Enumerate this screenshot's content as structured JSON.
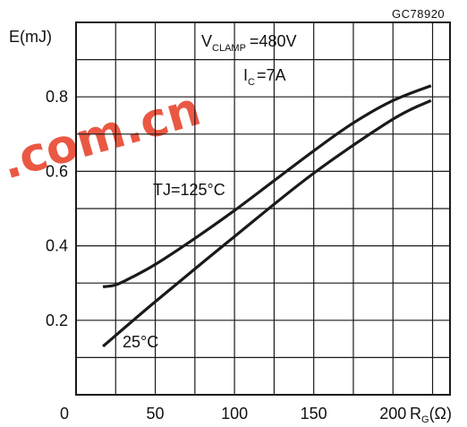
{
  "figure_code": "GC78920",
  "watermark": {
    "text": ".com.cn",
    "color": "#e8462f"
  },
  "chart_data": {
    "type": "line",
    "title": "",
    "ylabel": "E(mJ)",
    "xlabel_main": "R",
    "xlabel_sub": "G",
    "xlabel_tail": "(Ω)",
    "xlim": [
      0,
      236
    ],
    "ylim": [
      0,
      1.0
    ],
    "x_ticks": [
      0,
      50,
      100,
      150,
      200
    ],
    "y_ticks": [
      0.2,
      0.4,
      0.6,
      0.8
    ],
    "x_grid": [
      25,
      50,
      75,
      100,
      125,
      150,
      175,
      200,
      225
    ],
    "y_grid": [
      0.1,
      0.2,
      0.3,
      0.4,
      0.5,
      0.6,
      0.7,
      0.8,
      0.9
    ],
    "grid": true,
    "conditions": {
      "vclamp_main": "V",
      "vclamp_sub": "CLAMP",
      "vclamp_value": "=480V",
      "ic_main": "I",
      "ic_sub": "C",
      "ic_value": "=7A"
    },
    "series": [
      {
        "name": "TJ=125°C",
        "x": [
          17,
          25,
          35,
          50,
          75,
          100,
          125,
          150,
          175,
          200,
          224
        ],
        "y": [
          0.29,
          0.295,
          0.315,
          0.35,
          0.42,
          0.495,
          0.575,
          0.655,
          0.73,
          0.79,
          0.83
        ]
      },
      {
        "name": "25°C",
        "x": [
          17,
          50,
          100,
          150,
          200,
          224
        ],
        "y": [
          0.13,
          0.25,
          0.425,
          0.595,
          0.74,
          0.79
        ]
      }
    ],
    "labels": {
      "tj125": "TJ=125°C",
      "t25": "25°C"
    },
    "colors": {
      "curve": "#1a1a1a",
      "grid": "#1a1a1a"
    }
  }
}
